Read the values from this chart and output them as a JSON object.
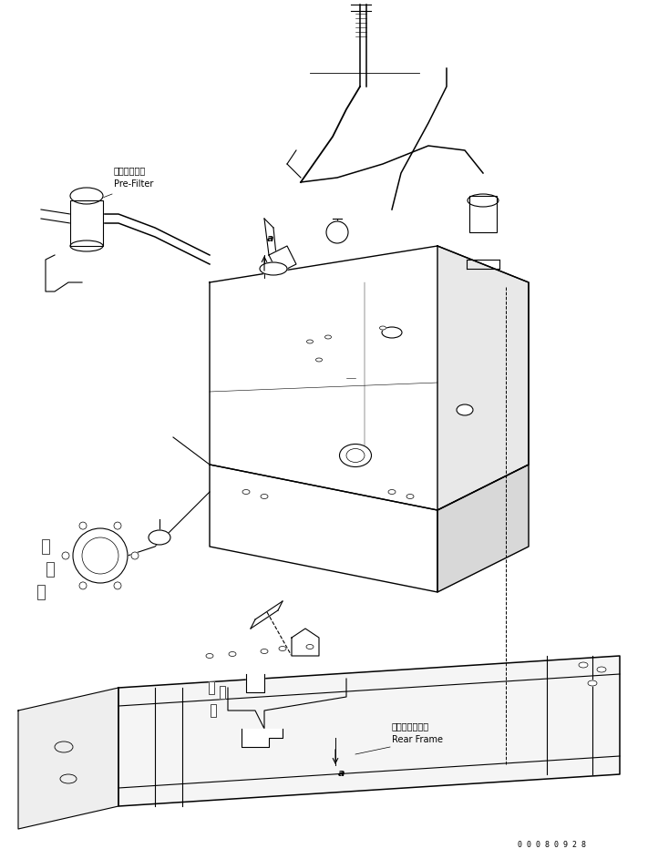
{
  "figure_width": 7.11,
  "figure_height": 9.43,
  "dpi": 100,
  "background_color": "#ffffff",
  "line_color": "#000000",
  "line_width": 0.8,
  "labels": {
    "pre_filter_ja": "プリフィルタ",
    "pre_filter_en": "Pre-Filter",
    "rear_frame_ja": "リヤーフレーム",
    "rear_frame_en": "Rear Frame",
    "label_a": "a",
    "serial_number": "0 0 0 8 0 9 2 8"
  },
  "font_sizes": {
    "label_ja": 7,
    "label_en": 7,
    "small": 5.5,
    "serial": 6
  }
}
